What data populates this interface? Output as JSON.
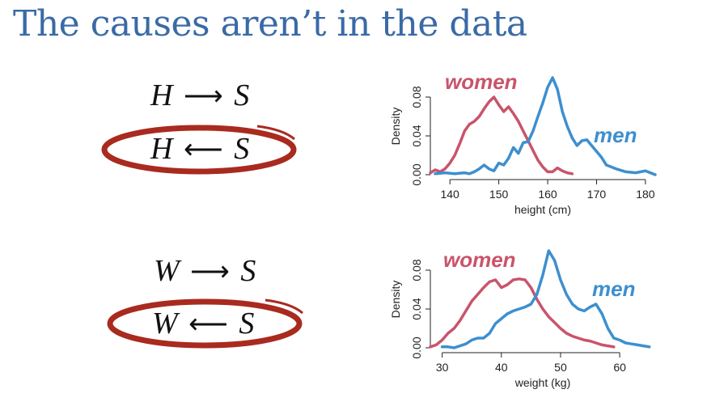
{
  "title": "The causes aren’t in the data",
  "dags": [
    {
      "from": "H",
      "to": "S",
      "arrow": "⟶",
      "circled": false
    },
    {
      "from": "H",
      "to": "S",
      "arrow": "⟵",
      "circled": true
    },
    {
      "from": "W",
      "to": "S",
      "arrow": "⟶",
      "circled": false
    },
    {
      "from": "W",
      "to": "S",
      "arrow": "⟵",
      "circled": true
    }
  ],
  "colors": {
    "women": "#c9546b",
    "men": "#3d8fcf",
    "circle": "#a92a1f",
    "title": "#3a6aa6"
  },
  "chart_data": [
    {
      "type": "line",
      "xlabel": "height (cm)",
      "ylabel": "Density",
      "xlim": [
        136,
        182
      ],
      "ylim": [
        0,
        0.1
      ],
      "xticks": [
        140,
        150,
        160,
        170,
        180
      ],
      "yticks": [
        0.0,
        0.04,
        0.08
      ],
      "ytick_labels": [
        "0.00",
        "0.04",
        "0.08"
      ],
      "series": [
        {
          "name": "women",
          "x": [
            136,
            137,
            138,
            139,
            140,
            141,
            142,
            143,
            144,
            145,
            146,
            147,
            148,
            149,
            150,
            151,
            152,
            153,
            154,
            155,
            156,
            157,
            158,
            159,
            160,
            161,
            162,
            163,
            164,
            165
          ],
          "y": [
            0.002,
            0.005,
            0.003,
            0.006,
            0.012,
            0.02,
            0.032,
            0.045,
            0.052,
            0.055,
            0.06,
            0.068,
            0.075,
            0.08,
            0.072,
            0.065,
            0.07,
            0.063,
            0.055,
            0.045,
            0.035,
            0.025,
            0.015,
            0.008,
            0.003,
            0.003,
            0.007,
            0.004,
            0.002,
            0.001
          ]
        },
        {
          "name": "men",
          "x": [
            137,
            139,
            141,
            143,
            144,
            145,
            146,
            147,
            148,
            149,
            150,
            151,
            152,
            153,
            154,
            155,
            156,
            157,
            158,
            159,
            160,
            161,
            162,
            163,
            164,
            165,
            166,
            167,
            168,
            169,
            170,
            171,
            172,
            174,
            176,
            178,
            180,
            182
          ],
          "y": [
            0.001,
            0.002,
            0.001,
            0.002,
            0.001,
            0.003,
            0.006,
            0.01,
            0.006,
            0.004,
            0.012,
            0.01,
            0.017,
            0.028,
            0.022,
            0.033,
            0.034,
            0.045,
            0.06,
            0.074,
            0.09,
            0.1,
            0.088,
            0.065,
            0.05,
            0.038,
            0.03,
            0.035,
            0.036,
            0.03,
            0.024,
            0.018,
            0.01,
            0.006,
            0.003,
            0.002,
            0.004,
            0.0
          ]
        }
      ],
      "annotations": [
        {
          "text": "women",
          "series": "women"
        },
        {
          "text": "men",
          "series": "men"
        }
      ]
    },
    {
      "type": "line",
      "xlabel": "weight (kg)",
      "ylabel": "Density",
      "xlim": [
        28,
        66
      ],
      "ylim": [
        0,
        0.1
      ],
      "xticks": [
        30,
        40,
        50,
        60
      ],
      "yticks": [
        0.0,
        0.04,
        0.08
      ],
      "ytick_labels": [
        "0.00",
        "0.04",
        "0.08"
      ],
      "series": [
        {
          "name": "women",
          "x": [
            28,
            29,
            30,
            31,
            32,
            33,
            34,
            35,
            36,
            37,
            38,
            39,
            40,
            41,
            42,
            43,
            44,
            45,
            46,
            47,
            48,
            49,
            50,
            51,
            52,
            53,
            54,
            55,
            56,
            57,
            58,
            59
          ],
          "y": [
            0.001,
            0.003,
            0.008,
            0.015,
            0.02,
            0.028,
            0.038,
            0.048,
            0.055,
            0.062,
            0.068,
            0.07,
            0.062,
            0.065,
            0.07,
            0.071,
            0.07,
            0.062,
            0.05,
            0.04,
            0.032,
            0.026,
            0.02,
            0.015,
            0.012,
            0.01,
            0.008,
            0.007,
            0.005,
            0.003,
            0.002,
            0.001
          ]
        },
        {
          "name": "men",
          "x": [
            30,
            31,
            32,
            33,
            34,
            35,
            36,
            37,
            38,
            39,
            40,
            41,
            42,
            43,
            44,
            45,
            46,
            47,
            48,
            49,
            50,
            51,
            52,
            53,
            54,
            55,
            56,
            57,
            58,
            59,
            60,
            61,
            62,
            63,
            64,
            65
          ],
          "y": [
            0.001,
            0.001,
            0.0,
            0.002,
            0.004,
            0.008,
            0.01,
            0.01,
            0.015,
            0.025,
            0.03,
            0.035,
            0.038,
            0.04,
            0.042,
            0.045,
            0.055,
            0.075,
            0.1,
            0.09,
            0.07,
            0.055,
            0.045,
            0.04,
            0.038,
            0.042,
            0.045,
            0.035,
            0.02,
            0.01,
            0.008,
            0.005,
            0.004,
            0.003,
            0.002,
            0.001
          ]
        }
      ],
      "annotations": [
        {
          "text": "women",
          "series": "women"
        },
        {
          "text": "men",
          "series": "men"
        }
      ]
    }
  ]
}
